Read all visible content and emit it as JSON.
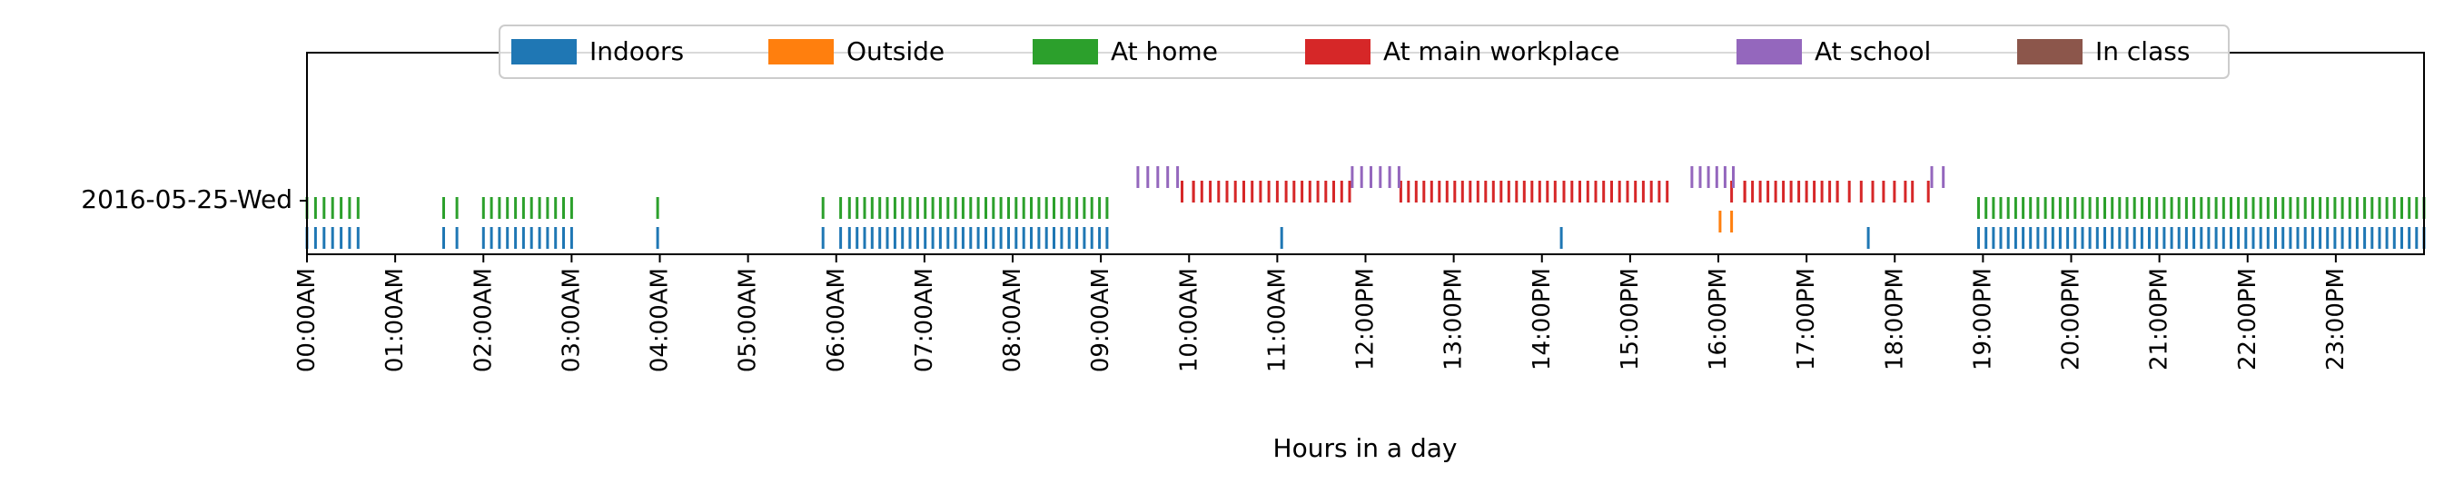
{
  "chart_data": {
    "type": "event-timeline",
    "xlabel": "Hours in a day",
    "xlim": [
      0,
      24
    ],
    "row_label": "2016-05-25-Wed",
    "x_tick_labels": [
      "00:00AM",
      "01:00AM",
      "02:00AM",
      "03:00AM",
      "04:00AM",
      "05:00AM",
      "06:00AM",
      "07:00AM",
      "08:00AM",
      "09:00AM",
      "10:00AM",
      "11:00AM",
      "12:00PM",
      "13:00PM",
      "14:00PM",
      "15:00PM",
      "16:00PM",
      "17:00PM",
      "18:00PM",
      "19:00PM",
      "20:00PM",
      "21:00PM",
      "22:00PM",
      "23:00PM"
    ],
    "legend_position": "top-center",
    "grid": false,
    "series": [
      {
        "name": "Indoors",
        "color": "#1f77b4",
        "level": 0,
        "intervals": [
          [
            0.0,
            0.58
          ],
          [
            1.55,
            1.7
          ],
          [
            2.0,
            3.0
          ],
          [
            3.93,
            4.02
          ],
          [
            5.85,
            6.05
          ],
          [
            6.15,
            9.07
          ],
          [
            11.02,
            11.08
          ],
          [
            14.19,
            14.25
          ],
          [
            17.67,
            17.73
          ],
          [
            18.95,
            24.0
          ]
        ]
      },
      {
        "name": "Outside",
        "color": "#ff7f0e",
        "level": 1,
        "intervals": [
          [
            16.02,
            16.15
          ]
        ]
      },
      {
        "name": "At home",
        "color": "#2ca02c",
        "level": 2,
        "intervals": [
          [
            0.0,
            0.58
          ],
          [
            1.55,
            1.7
          ],
          [
            2.0,
            3.0
          ],
          [
            3.93,
            4.02
          ],
          [
            5.85,
            6.05
          ],
          [
            6.15,
            9.07
          ],
          [
            18.95,
            24.0
          ]
        ]
      },
      {
        "name": "At main workplace",
        "color": "#d62728",
        "level": 3,
        "intervals": [
          [
            9.92,
            10.05
          ],
          [
            10.05,
            11.0
          ],
          [
            11.1,
            11.82
          ],
          [
            12.4,
            14.15
          ],
          [
            14.25,
            15.42
          ],
          [
            16.15,
            16.3
          ],
          [
            16.3,
            17.35
          ],
          [
            17.35,
            17.62
          ],
          [
            17.75,
            18.12
          ],
          [
            18.2,
            18.38
          ]
        ]
      },
      {
        "name": "At school",
        "color": "#9467bd",
        "level": 4,
        "intervals": [
          [
            9.42,
            9.87
          ],
          [
            11.85,
            12.38
          ],
          [
            15.7,
            16.17
          ],
          [
            18.42,
            18.55
          ]
        ]
      },
      {
        "name": "In class",
        "color": "#8c564b",
        "level": 5,
        "intervals": []
      }
    ]
  }
}
